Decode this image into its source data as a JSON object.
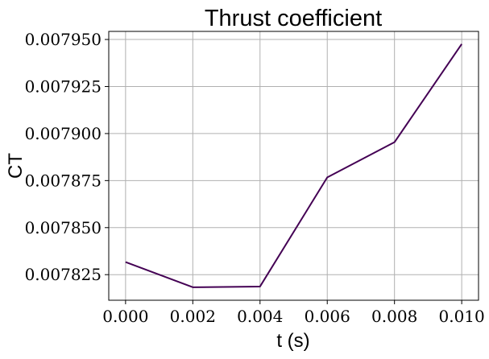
{
  "chart_data": {
    "type": "line",
    "title": "Thrust coefficient",
    "xlabel": "t (s)",
    "ylabel": "CT",
    "x": [
      0.0,
      0.002,
      0.004,
      0.006,
      0.008,
      0.01
    ],
    "series": [
      {
        "values": [
          0.0078317,
          0.0078183,
          0.0078187,
          0.0078767,
          0.0078954,
          0.0079476
        ],
        "color": "#440154"
      }
    ],
    "xticks": [
      "0.000",
      "0.002",
      "0.004",
      "0.006",
      "0.008",
      "0.010"
    ],
    "xtick_values": [
      0.0,
      0.002,
      0.004,
      0.006,
      0.008,
      0.01
    ],
    "yticks": [
      "0.007825",
      "0.007850",
      "0.007875",
      "0.007900",
      "0.007925",
      "0.007950"
    ],
    "ytick_values": [
      0.007825,
      0.00785,
      0.007875,
      0.0079,
      0.007925,
      0.00795
    ],
    "xlim": [
      -0.0005,
      0.0105
    ],
    "ylim": [
      0.0078114,
      0.0079543
    ],
    "grid": true,
    "legend": false
  }
}
